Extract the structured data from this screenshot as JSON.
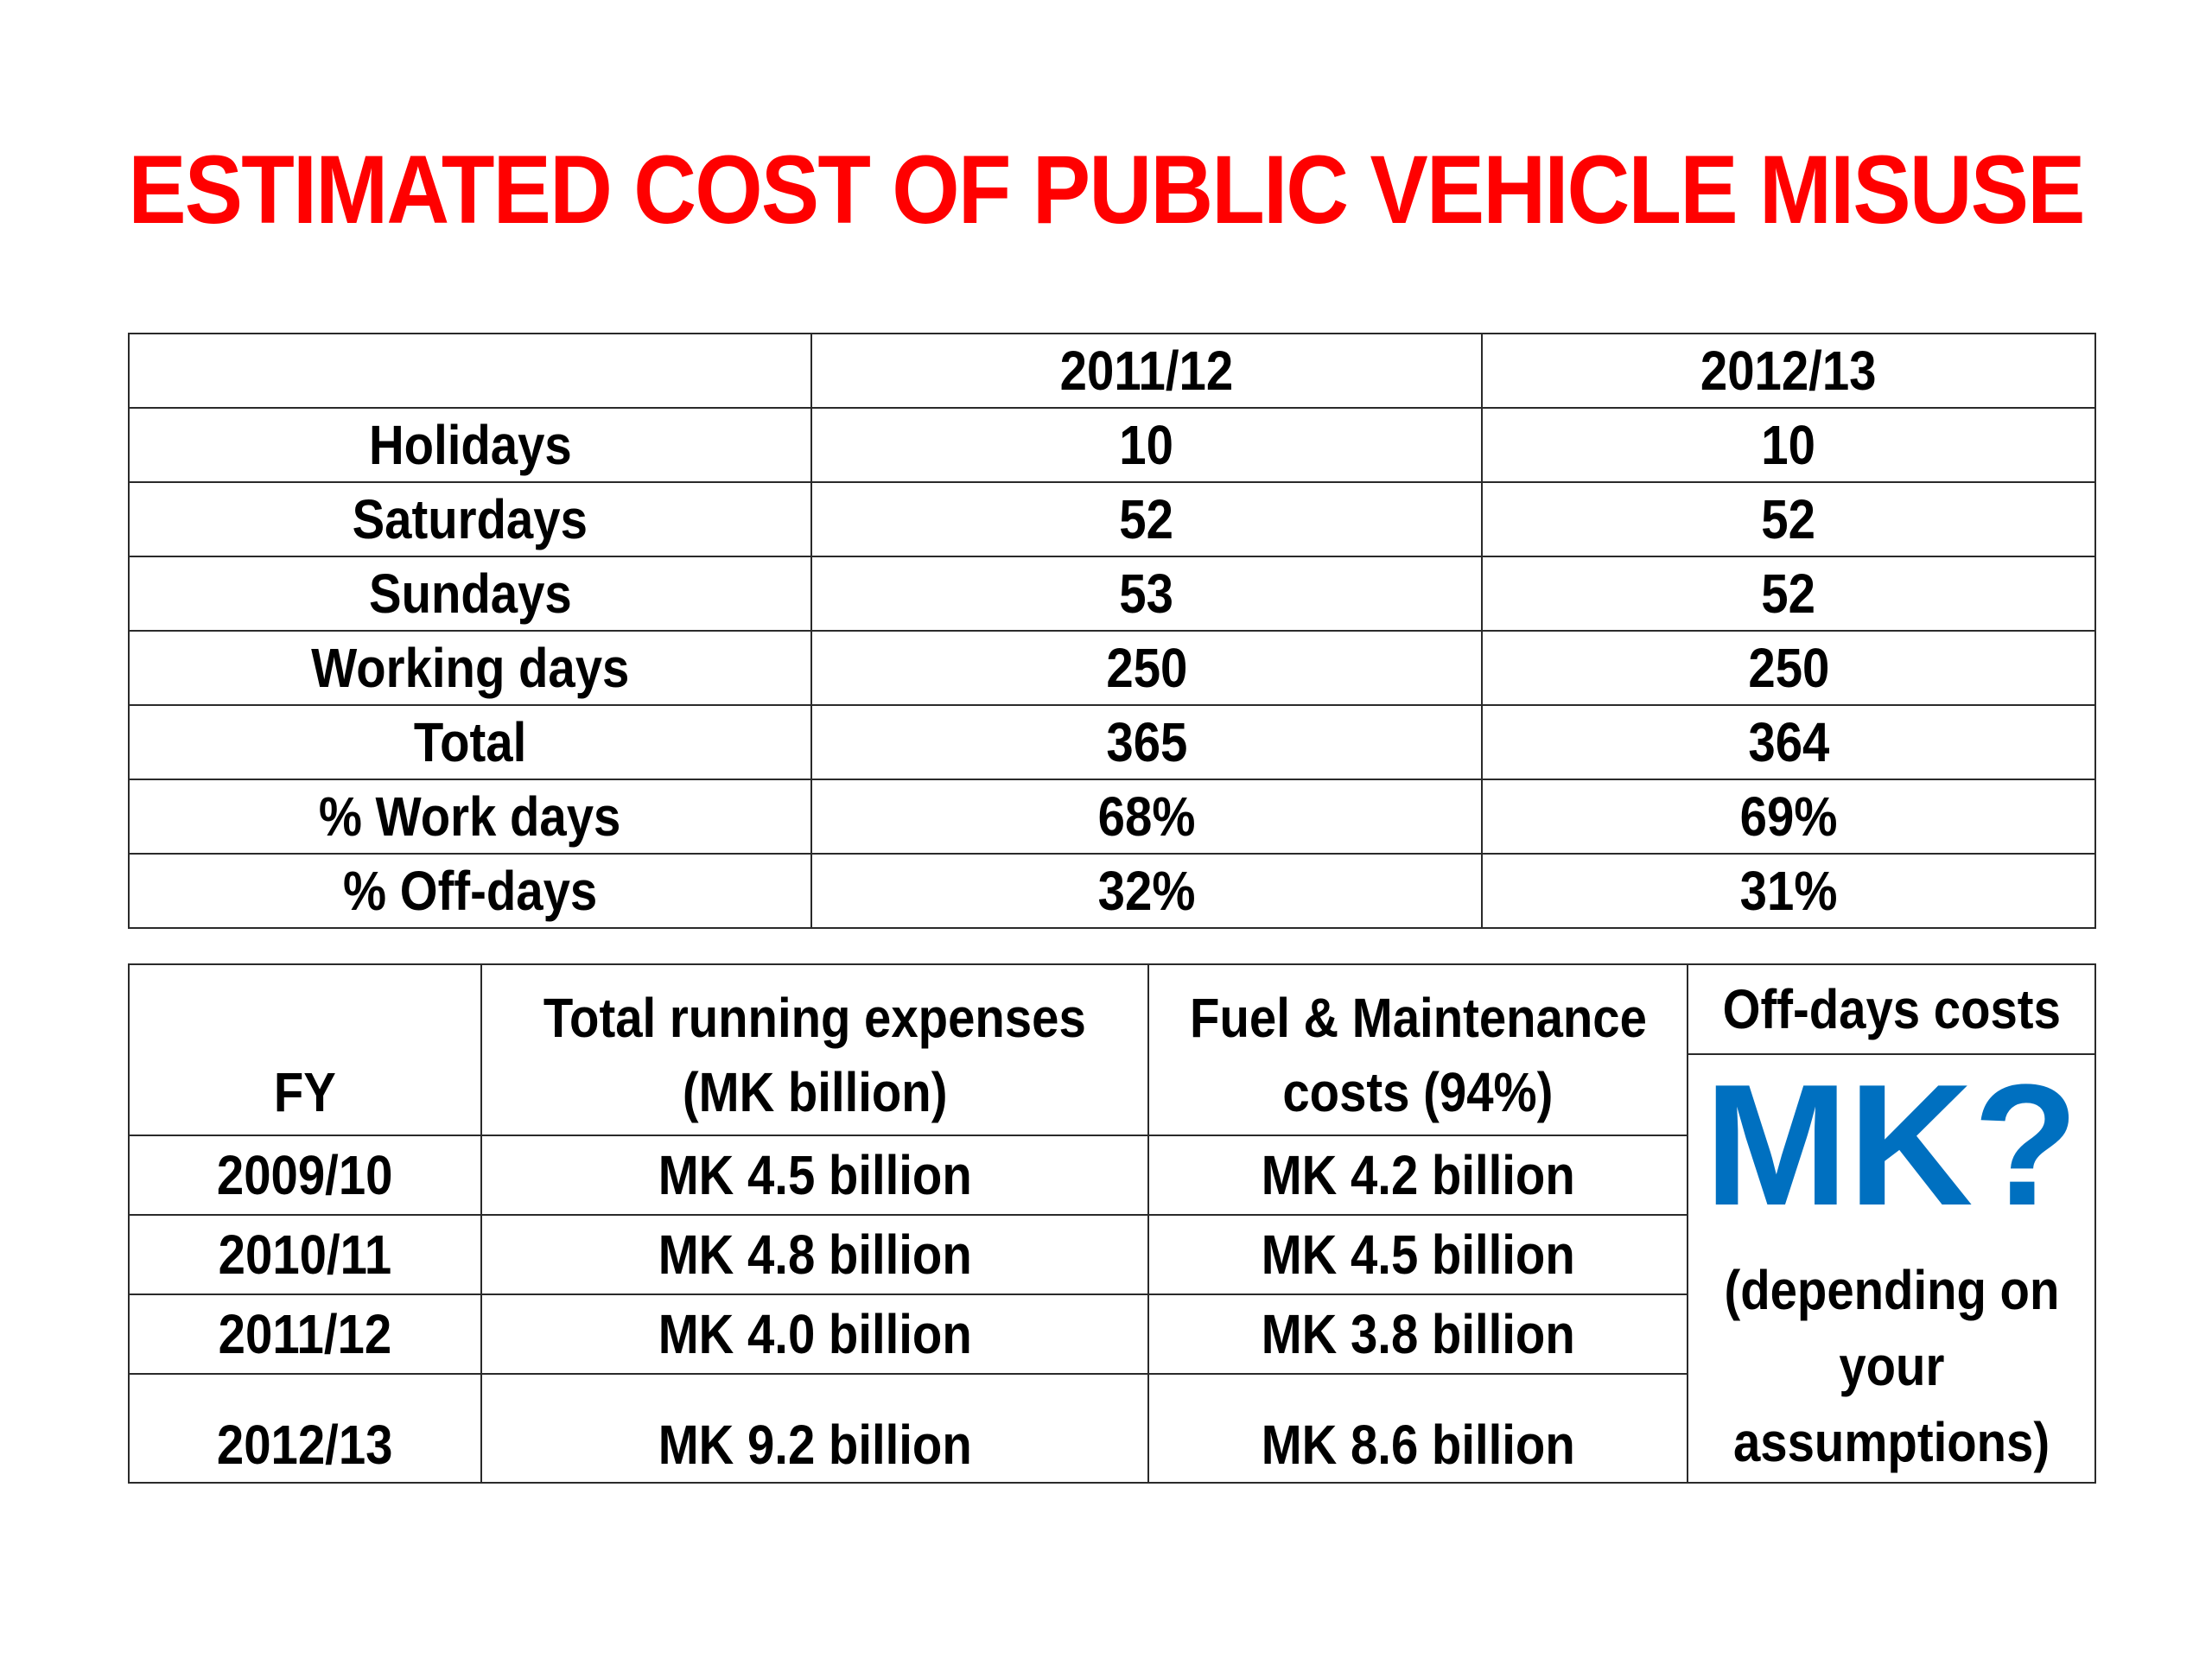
{
  "title": "ESTIMATED COST OF PUBLIC VEHICLE MISUSE",
  "days_table": {
    "headers": [
      "",
      "2011/12",
      "2012/13"
    ],
    "rows": [
      {
        "label": "Holidays",
        "v1": "10",
        "v2": "10"
      },
      {
        "label": "Saturdays",
        "v1": "52",
        "v2": "52"
      },
      {
        "label": "Sundays",
        "v1": "53",
        "v2": "52"
      },
      {
        "label": "Working days",
        "v1": "250",
        "v2": "250"
      },
      {
        "label": "Total",
        "v1": "365",
        "v2": "364"
      },
      {
        "label": "% Work days",
        "v1": "68%",
        "v2": "69%"
      },
      {
        "label": "% Off-days",
        "v1": "32%",
        "v2": "31%"
      }
    ]
  },
  "costs_table": {
    "headers": {
      "fy": "FY",
      "running_line1": "Total running expenses",
      "running_line2": "(MK billion)",
      "fuel_line1": "Fuel & Maintenance",
      "fuel_line2": "costs (94%)",
      "offdays": "Off-days costs"
    },
    "rows": [
      {
        "fy": "2009/10",
        "running": "MK 4.5 billion",
        "fuel": "MK 4.2 billion"
      },
      {
        "fy": "2010/11",
        "running": "MK 4.8 billion",
        "fuel": "MK 4.5 billion"
      },
      {
        "fy": "2011/12",
        "running": "MK 4.0 billion",
        "fuel": "MK 3.8 billion"
      },
      {
        "fy": "2012/13",
        "running": "MK 9.2 billion",
        "fuel": "MK 8.6 billion"
      }
    ],
    "offdays_value": "MK?",
    "offdays_note_line1": "(depending on",
    "offdays_note_line2": "your",
    "offdays_note_line3": "assumptions)"
  },
  "colors": {
    "title": "#ff0000",
    "accent": "#0070c0"
  }
}
